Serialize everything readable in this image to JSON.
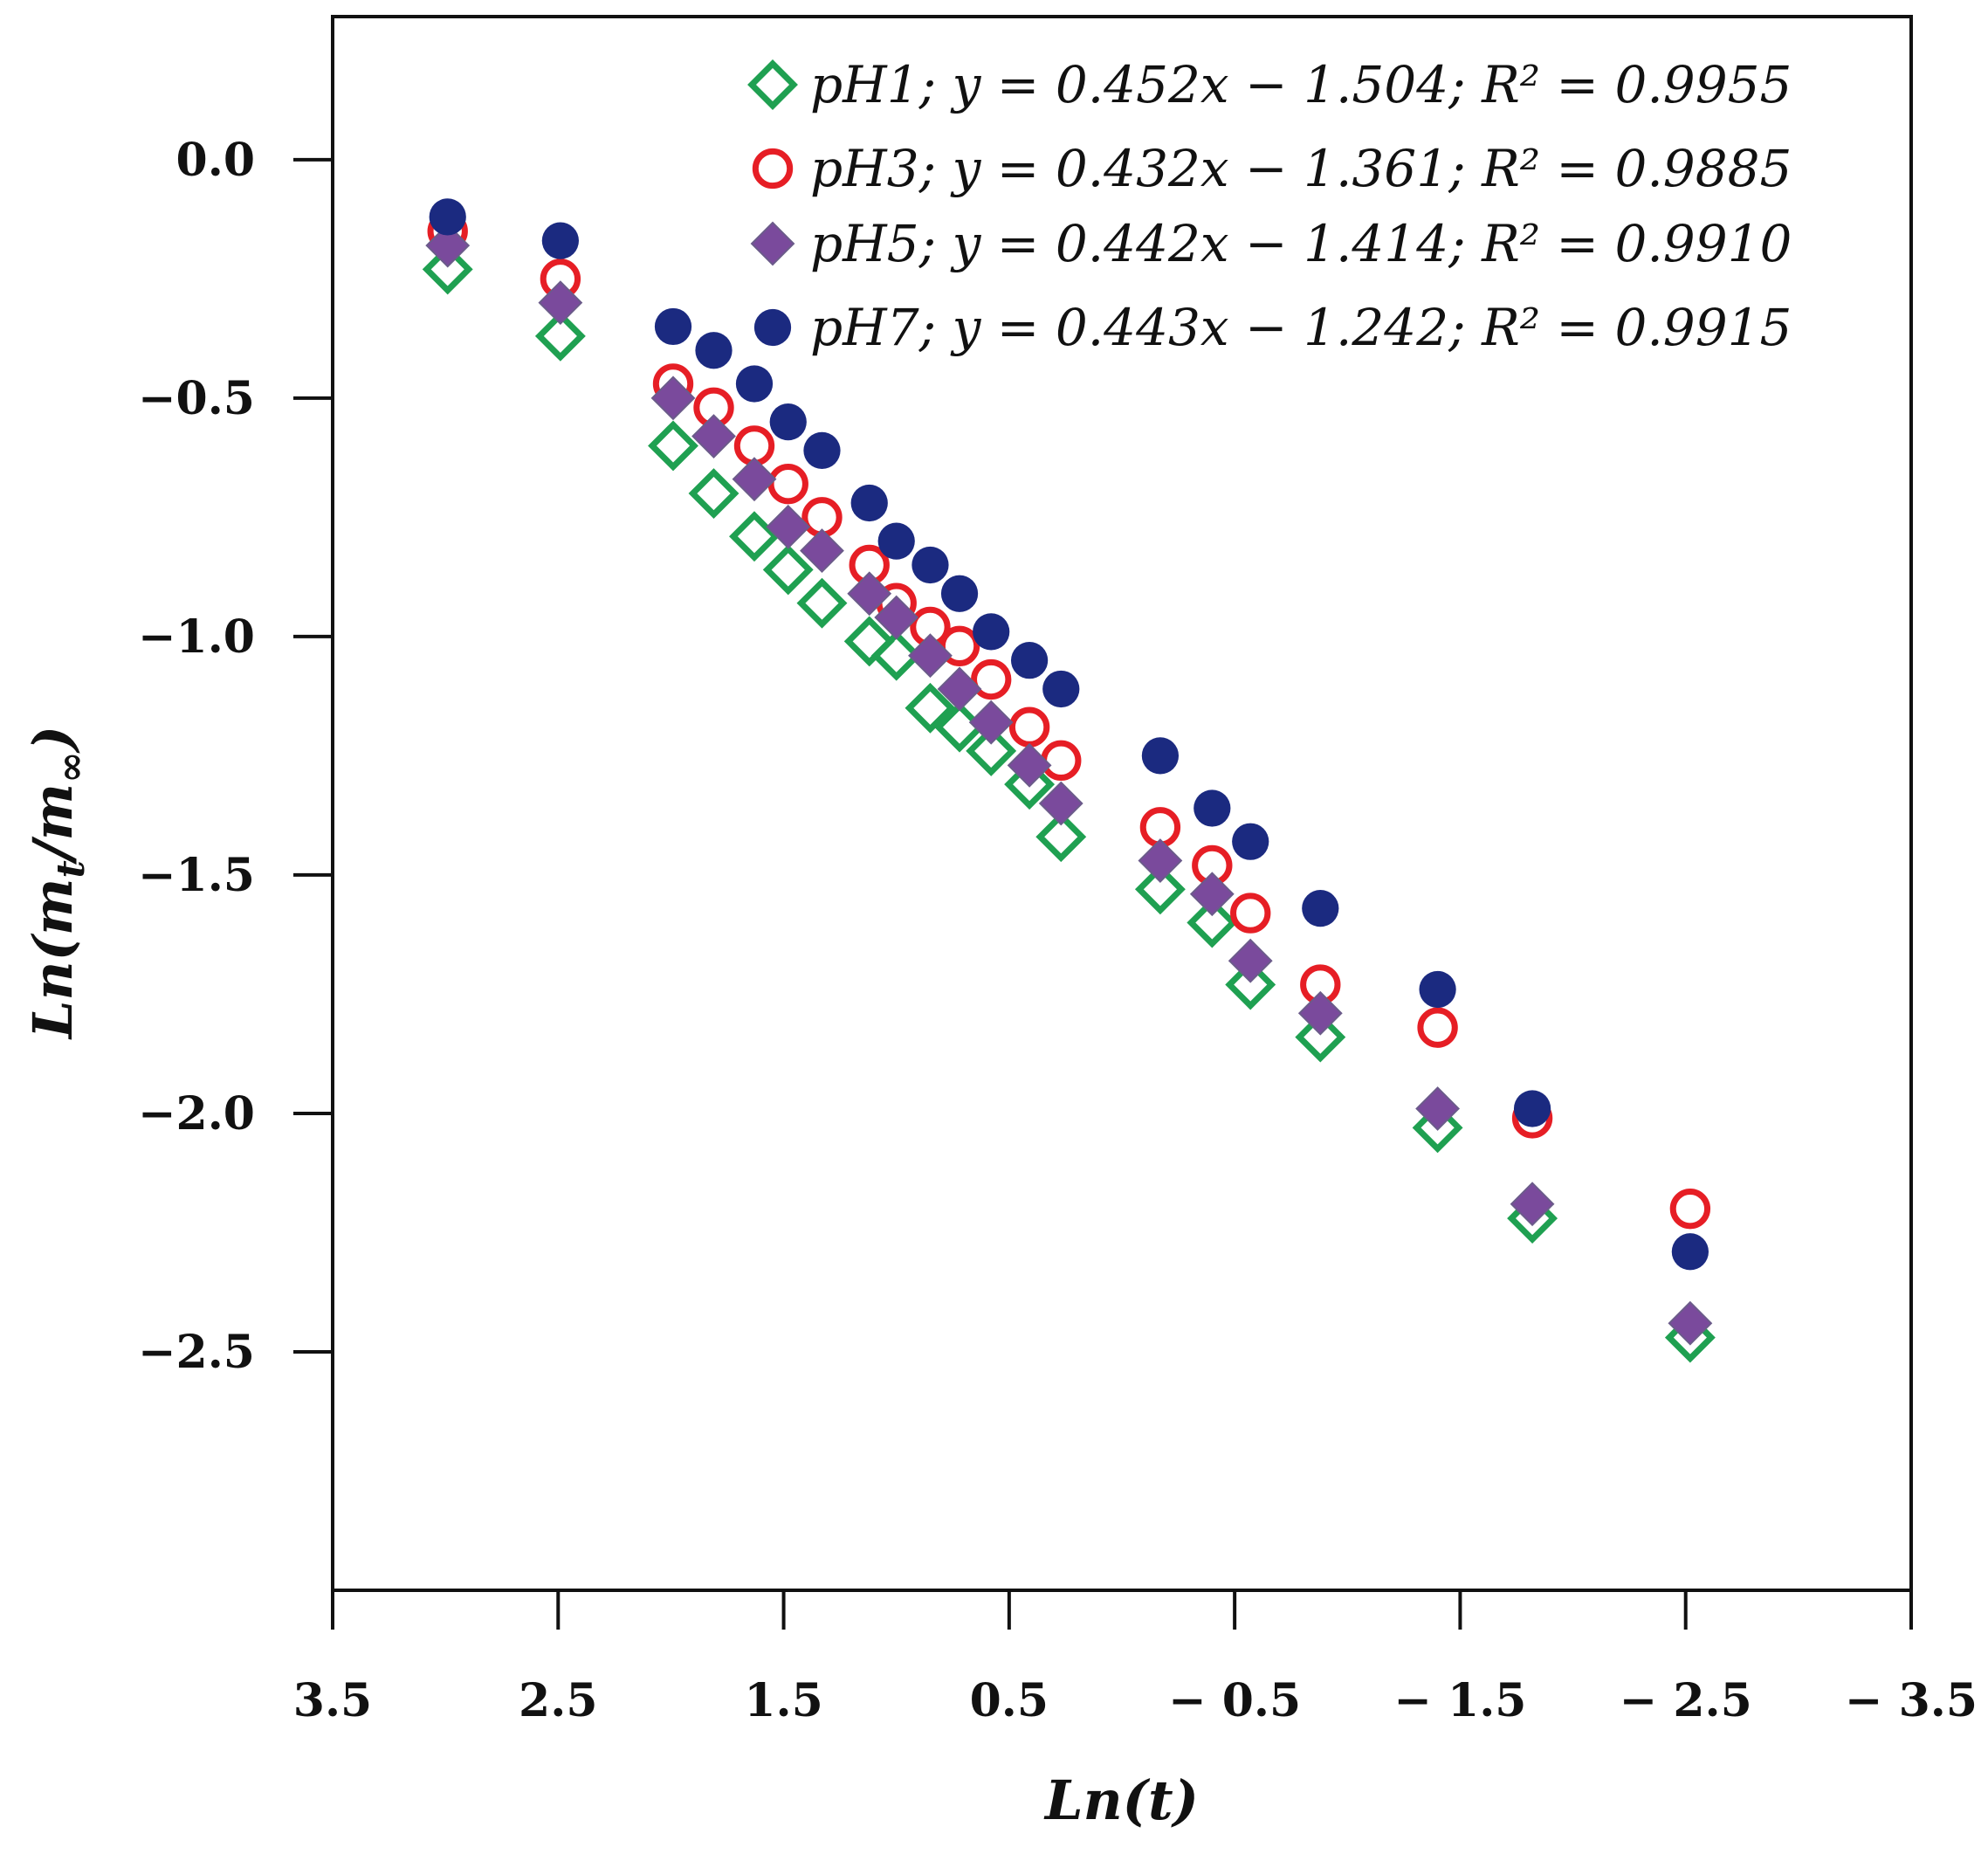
{
  "chart_data": {
    "type": "scatter",
    "title": "",
    "xlabel": "Ln(t)",
    "ylabel": "Ln(mt/m∞)",
    "ylabel_parts": {
      "prefix": "Ln(m",
      "sub1": "t",
      "mid": "/m",
      "sub2": "∞",
      "suffix": ")"
    },
    "xlim": [
      3.5,
      -3.5
    ],
    "ylim": [
      -3.0,
      0.3
    ],
    "x_ticks": [
      3.5,
      2.5,
      1.5,
      0.5,
      -0.5,
      -1.5,
      -2.5,
      -3.5
    ],
    "x_tick_labels": [
      "3.5",
      "2.5",
      "1.5",
      "0.5",
      "− 0.5",
      "− 1.5",
      "− 2.5",
      "− 3.5"
    ],
    "y_ticks": [
      0.0,
      -0.5,
      -1.0,
      -1.5,
      -2.0,
      -2.5
    ],
    "y_tick_labels": [
      "0.0",
      "−0.5",
      "−1.0",
      "−1.5",
      "−2.0",
      "−2.5"
    ],
    "grid": false,
    "legend_position": "top-right",
    "x": [
      2.99,
      2.49,
      1.99,
      1.81,
      1.63,
      1.48,
      1.33,
      1.12,
      1.0,
      0.85,
      0.72,
      0.58,
      0.41,
      0.27,
      -0.17,
      -0.4,
      -0.57,
      -0.88,
      -1.4,
      -1.82,
      -2.52
    ],
    "series": [
      {
        "name": "pH1",
        "legend": "pH1; y = 0.452x − 1.504; R² = 0.9955",
        "marker": "diamond-open",
        "color": "#1fa051",
        "values": [
          -0.23,
          -0.37,
          -0.6,
          -0.7,
          -0.79,
          -0.86,
          -0.93,
          -1.01,
          -1.04,
          -1.15,
          -1.19,
          -1.24,
          -1.31,
          -1.42,
          -1.53,
          -1.6,
          -1.73,
          -1.84,
          -2.03,
          -2.22,
          -2.47
        ]
      },
      {
        "name": "pH3",
        "legend": "pH3; y = 0.432x − 1.361; R² = 0.9885",
        "marker": "circle-open",
        "color": "#e61e25",
        "values": [
          -0.15,
          -0.25,
          -0.47,
          -0.52,
          -0.6,
          -0.68,
          -0.75,
          -0.85,
          -0.93,
          -0.98,
          -1.02,
          -1.09,
          -1.19,
          -1.26,
          -1.4,
          -1.48,
          -1.58,
          -1.73,
          -1.82,
          -2.01,
          -2.2
        ]
      },
      {
        "name": "pH5",
        "legend": "pH5; y = 0.442x − 1.414; R² = 0.9910",
        "marker": "diamond-filled",
        "color": "#7a4a9c",
        "values": [
          -0.18,
          -0.3,
          -0.5,
          -0.58,
          -0.67,
          -0.77,
          -0.82,
          -0.91,
          -0.96,
          -1.04,
          -1.11,
          -1.18,
          -1.27,
          -1.35,
          -1.47,
          -1.54,
          -1.68,
          -1.79,
          -1.99,
          -2.19,
          -2.44
        ]
      },
      {
        "name": "pH7",
        "legend": "pH7; y = 0.443x − 1.242; R² = 0.9915",
        "marker": "circle-filled",
        "color": "#1b2a80",
        "values": [
          -0.12,
          -0.17,
          -0.35,
          -0.4,
          -0.47,
          -0.55,
          -0.61,
          -0.72,
          -0.8,
          -0.85,
          -0.91,
          -0.99,
          -1.05,
          -1.11,
          -1.25,
          -1.36,
          -1.43,
          -1.57,
          -1.74,
          -1.99,
          -2.29
        ]
      }
    ]
  }
}
